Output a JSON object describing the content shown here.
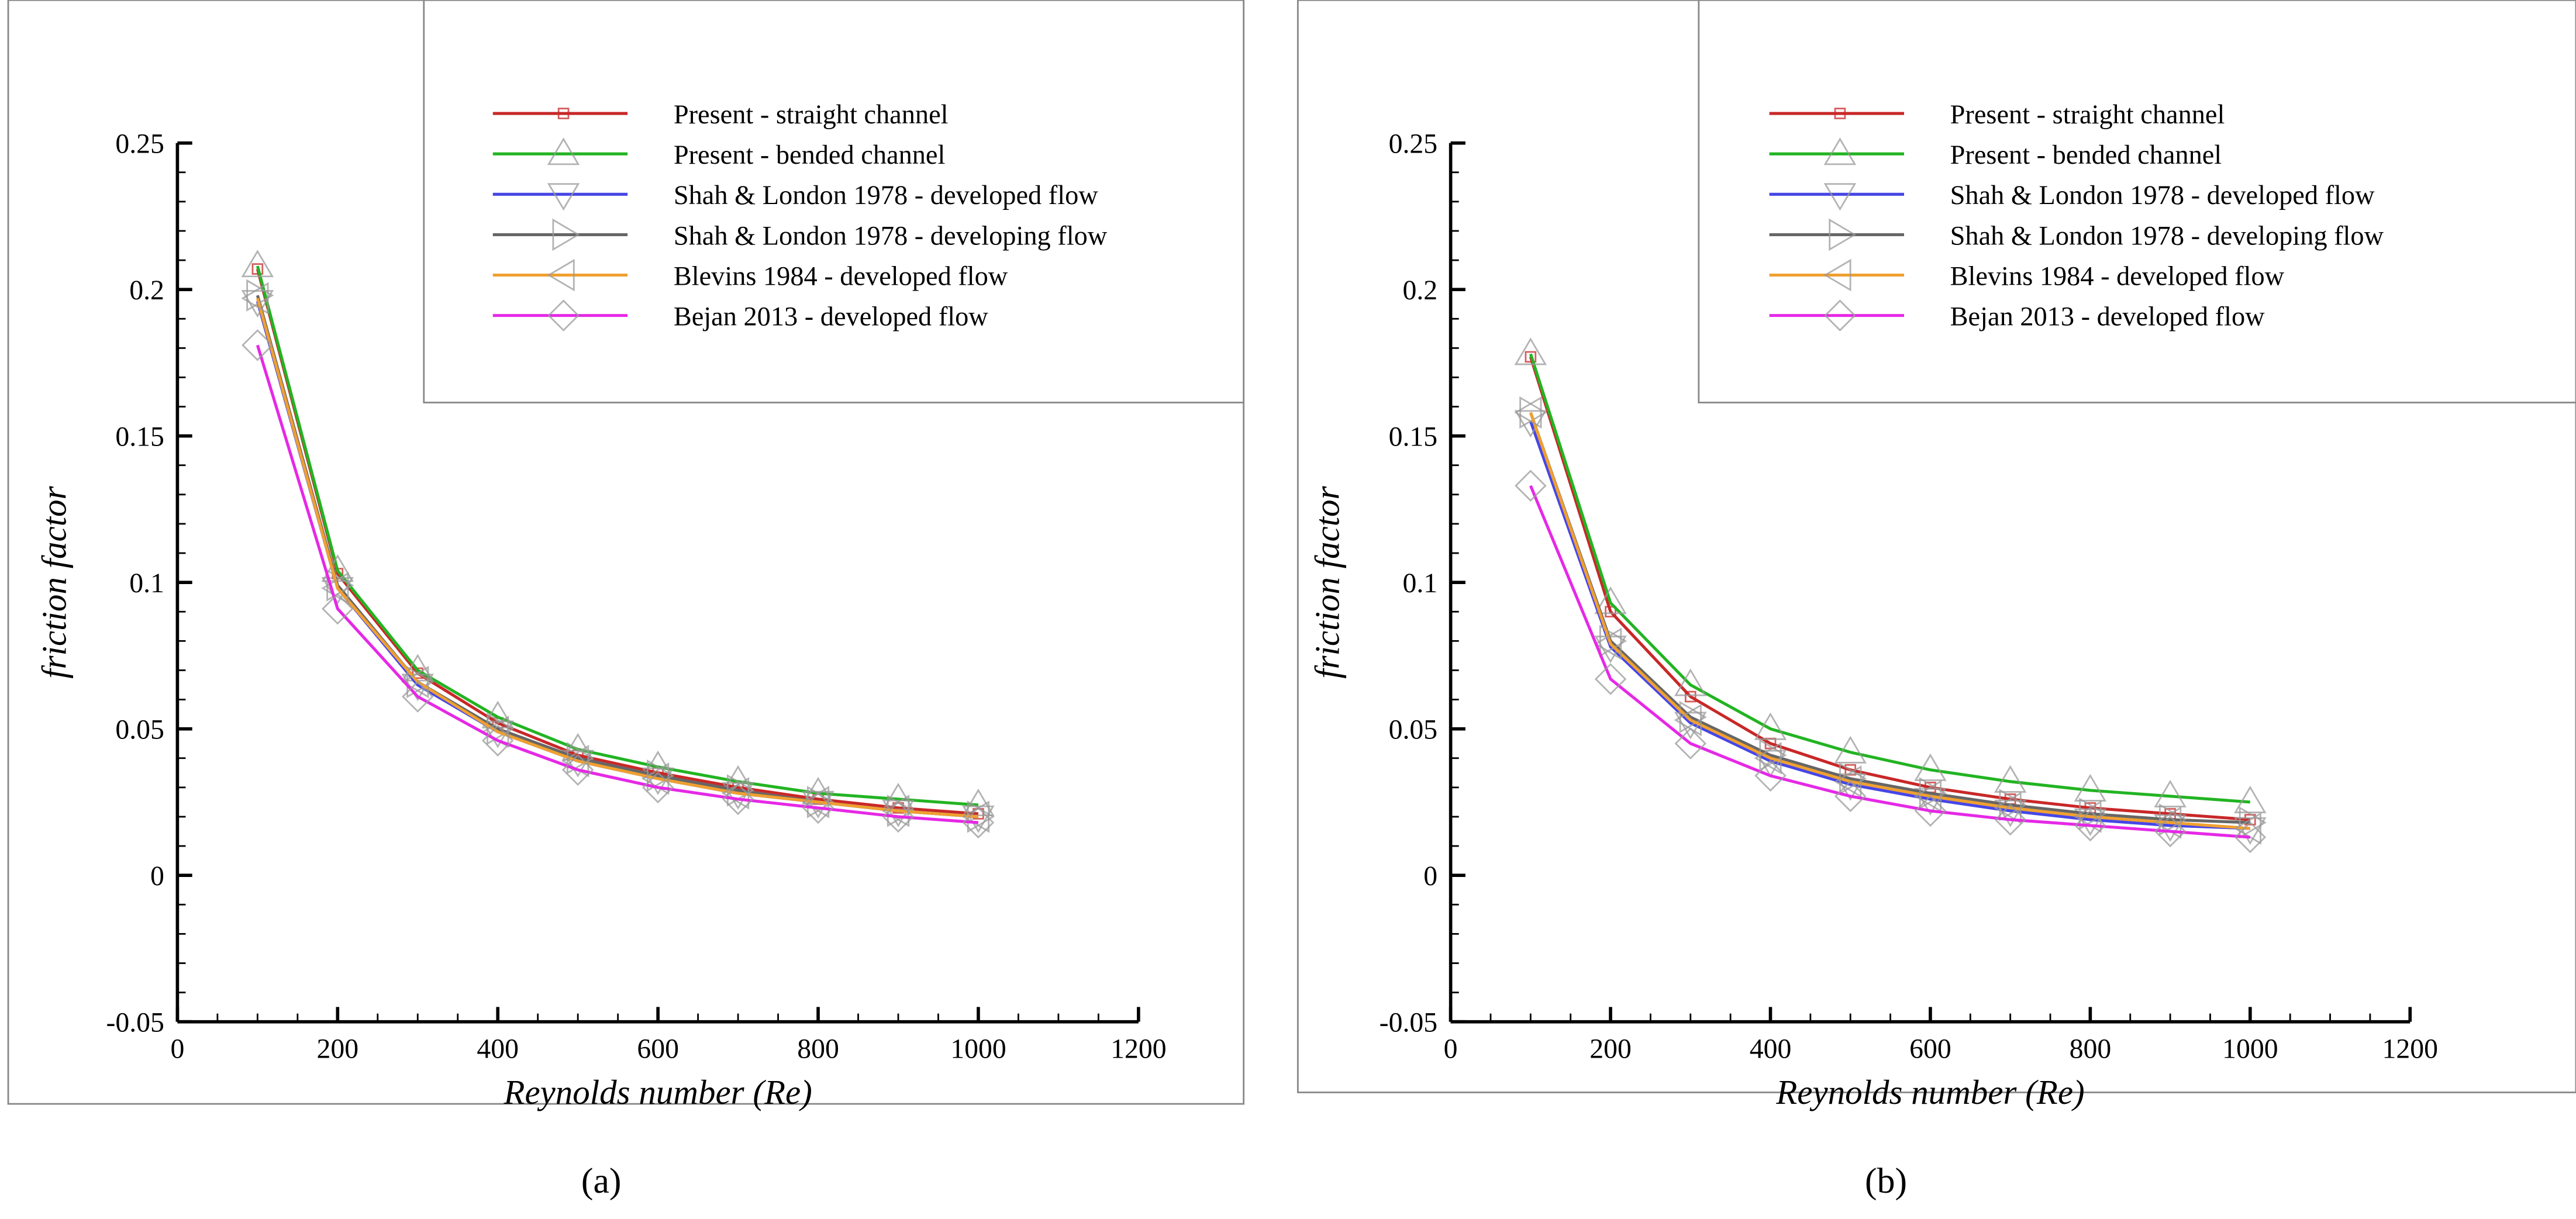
{
  "chart_data": [
    {
      "type": "line",
      "panel_label": "a",
      "xlabel": "Reynolds number (Re)",
      "ylabel": "friction factor",
      "xlim": [
        0,
        1200
      ],
      "ylim": [
        -0.05,
        0.25
      ],
      "xticks": [
        "0",
        "200",
        "400",
        "600",
        "800",
        "1000",
        "1200"
      ],
      "yticks": [
        "-0.05",
        "0",
        "0.05",
        "0.1",
        "0.15",
        "0.2",
        "0.25"
      ],
      "grid": false,
      "legend_position": "top-right",
      "x": [
        100,
        200,
        300,
        400,
        500,
        600,
        700,
        800,
        900,
        1000
      ],
      "series": [
        {
          "name": "Present - straight channel",
          "marker": "square",
          "color": "#c82828",
          "values": [
            0.207,
            0.103,
            0.069,
            0.052,
            0.041,
            0.035,
            0.03,
            0.026,
            0.023,
            0.021
          ]
        },
        {
          "name": "Present - bended channel",
          "marker": "triangle-up",
          "color": "#22b422",
          "values": [
            0.208,
            0.104,
            0.07,
            0.054,
            0.043,
            0.037,
            0.032,
            0.028,
            0.026,
            0.024
          ]
        },
        {
          "name": "Shah & London 1978 - developed flow",
          "marker": "triangle-down",
          "color": "#4646e6",
          "values": [
            0.196,
            0.098,
            0.065,
            0.049,
            0.039,
            0.033,
            0.028,
            0.025,
            0.022,
            0.02
          ]
        },
        {
          "name": "Shah & London 1978 - developing flow",
          "marker": "triangle-right",
          "color": "#666666",
          "values": [
            0.198,
            0.099,
            0.066,
            0.05,
            0.04,
            0.034,
            0.029,
            0.025,
            0.022,
            0.02
          ]
        },
        {
          "name": "Blevins 1984 - developed flow",
          "marker": "triangle-left",
          "color": "#f0a030",
          "values": [
            0.197,
            0.098,
            0.066,
            0.049,
            0.039,
            0.033,
            0.028,
            0.025,
            0.022,
            0.02
          ]
        },
        {
          "name": "Bejan 2013 - developed flow",
          "marker": "diamond",
          "color": "#e628e6",
          "values": [
            0.181,
            0.091,
            0.061,
            0.046,
            0.036,
            0.03,
            0.026,
            0.023,
            0.02,
            0.018
          ]
        }
      ]
    },
    {
      "type": "line",
      "panel_label": "b",
      "xlabel": "Reynolds number (Re)",
      "ylabel": "friction factor",
      "xlim": [
        0,
        1200
      ],
      "ylim": [
        -0.05,
        0.25
      ],
      "xticks": [
        "0",
        "200",
        "400",
        "600",
        "800",
        "1000",
        "1200"
      ],
      "yticks": [
        "-0.05",
        "0",
        "0.05",
        "0.1",
        "0.15",
        "0.2",
        "0.25"
      ],
      "grid": false,
      "legend_position": "top-right",
      "x": [
        100,
        200,
        300,
        400,
        500,
        600,
        700,
        800,
        900,
        1000
      ],
      "series": [
        {
          "name": "Present - straight channel",
          "marker": "square",
          "color": "#c82828",
          "values": [
            0.177,
            0.09,
            0.061,
            0.045,
            0.036,
            0.03,
            0.026,
            0.023,
            0.021,
            0.019
          ]
        },
        {
          "name": "Present - bended channel",
          "marker": "triangle-up",
          "color": "#22b422",
          "values": [
            0.178,
            0.093,
            0.065,
            0.05,
            0.042,
            0.036,
            0.032,
            0.029,
            0.027,
            0.025
          ]
        },
        {
          "name": "Shah & London 1978 - developed flow",
          "marker": "triangle-down",
          "color": "#4646e6",
          "values": [
            0.155,
            0.078,
            0.052,
            0.039,
            0.031,
            0.026,
            0.022,
            0.019,
            0.017,
            0.016
          ]
        },
        {
          "name": "Shah & London 1978 - developing flow",
          "marker": "triangle-right",
          "color": "#666666",
          "values": [
            0.158,
            0.08,
            0.054,
            0.041,
            0.033,
            0.028,
            0.024,
            0.021,
            0.019,
            0.018
          ]
        },
        {
          "name": "Blevins 1984 - developed flow",
          "marker": "triangle-left",
          "color": "#f0a030",
          "values": [
            0.158,
            0.079,
            0.053,
            0.04,
            0.032,
            0.027,
            0.023,
            0.02,
            0.018,
            0.016
          ]
        },
        {
          "name": "Bejan 2013 - developed flow",
          "marker": "diamond",
          "color": "#e628e6",
          "values": [
            0.133,
            0.067,
            0.045,
            0.034,
            0.027,
            0.022,
            0.019,
            0.017,
            0.015,
            0.013
          ]
        }
      ]
    }
  ],
  "captions": [
    "(a)",
    "(b)"
  ]
}
